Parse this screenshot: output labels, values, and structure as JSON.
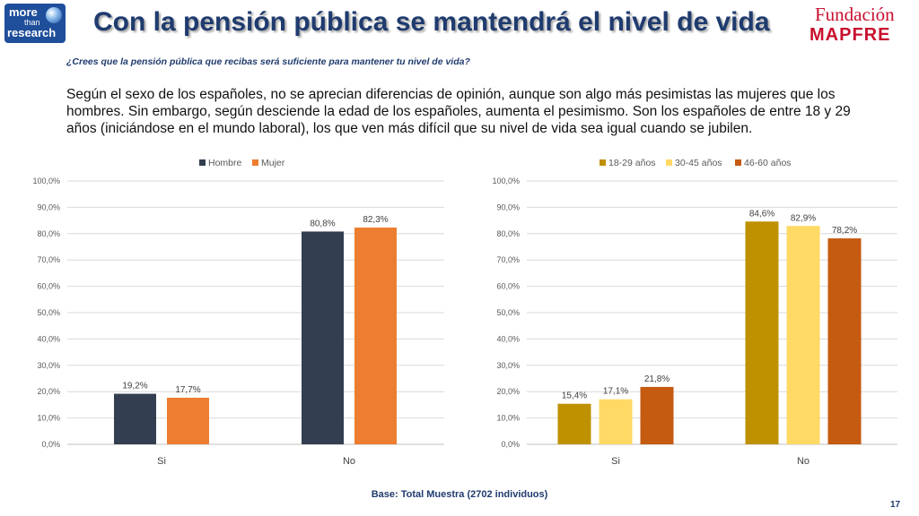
{
  "logo_left": {
    "line1": "more",
    "line2": "than",
    "line3": "research"
  },
  "title": "Con la pensión pública se mantendrá el nivel de vida",
  "logo_right": {
    "line1": "Fundación",
    "line2": "MAPFRE"
  },
  "question": "¿Crees que la pensión pública que recibas será suficiente para mantener tu nivel de vida?",
  "body_text": "Según el sexo de los españoles, no se aprecian diferencias de opinión, aunque son algo más pesimistas las mujeres que los hombres. Sin embargo, según desciende la edad de los españoles, aumenta el pesimismo. Son los españoles de entre 18 y 29 años (iniciándose en el mundo laboral), los que ven más difícil que su nivel de vida sea igual cuando se jubilen.",
  "footer": "Base: Total Muestra (2702 individuos)",
  "page_number": "17",
  "chart_data": [
    {
      "type": "bar",
      "title": "",
      "categories": [
        "Si",
        "No"
      ],
      "series": [
        {
          "name": "Hombre",
          "color": "#333f50",
          "values": [
            19.2,
            80.8
          ],
          "labels": [
            "19,2%",
            "80,8%"
          ]
        },
        {
          "name": "Mujer",
          "color": "#ed7d31",
          "values": [
            17.7,
            82.3
          ],
          "labels": [
            "17,7%",
            "82,3%"
          ]
        }
      ],
      "ylim": [
        0,
        100
      ],
      "yticks": [
        "0,0%",
        "10,0%",
        "20,0%",
        "30,0%",
        "40,0%",
        "50,0%",
        "60,0%",
        "70,0%",
        "80,0%",
        "90,0%",
        "100,0%"
      ],
      "grid": true,
      "legend": "top"
    },
    {
      "type": "bar",
      "title": "",
      "categories": [
        "Si",
        "No"
      ],
      "series": [
        {
          "name": "18-29 años",
          "color": "#bf9000",
          "values": [
            15.4,
            84.6
          ],
          "labels": [
            "15,4%",
            "84,6%"
          ]
        },
        {
          "name": "30-45 años",
          "color": "#ffd966",
          "values": [
            17.1,
            82.9
          ],
          "labels": [
            "17,1%",
            "82,9%"
          ]
        },
        {
          "name": "46-60 años",
          "color": "#c55a11",
          "values": [
            21.8,
            78.2
          ],
          "labels": [
            "21,8%",
            "78,2%"
          ]
        }
      ],
      "ylim": [
        0,
        100
      ],
      "yticks": [
        "0,0%",
        "10,0%",
        "20,0%",
        "30,0%",
        "40,0%",
        "50,0%",
        "60,0%",
        "70,0%",
        "80,0%",
        "90,0%",
        "100,0%"
      ],
      "grid": true,
      "legend": "top"
    }
  ]
}
